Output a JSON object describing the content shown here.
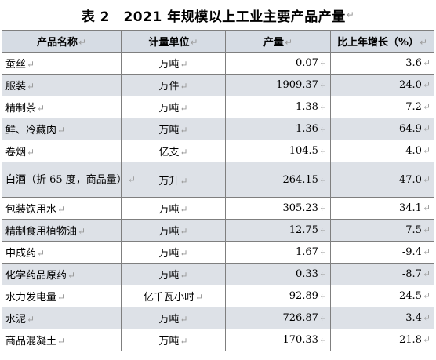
{
  "title": "表 2　2021 年规模以上工业主要产品产量",
  "columns": [
    "产品名称",
    "计量单位",
    "产量",
    "比上年增长（%）"
  ],
  "rows": [
    {
      "name": "蚕丝",
      "unit": "万吨",
      "output": "0.07",
      "growth": "3.6"
    },
    {
      "name": "服装",
      "unit": "万件",
      "output": "1909.37",
      "growth": "24.0"
    },
    {
      "name": "精制茶",
      "unit": "万吨",
      "output": "1.38",
      "growth": "7.2"
    },
    {
      "name": "鲜、冷藏肉",
      "unit": "万吨",
      "output": "1.36",
      "growth": "-64.9"
    },
    {
      "name": "卷烟",
      "unit": "亿支",
      "output": "104.5",
      "growth": "4.0"
    },
    {
      "name": "白酒（折 65 度，商品量）",
      "unit": "万升",
      "output": "264.15",
      "growth": "-47.0"
    },
    {
      "name": "包装饮用水",
      "unit": "万吨",
      "output": "305.23",
      "growth": "34.1"
    },
    {
      "name": "精制食用植物油",
      "unit": "万吨",
      "output": "12.75",
      "growth": "7.5"
    },
    {
      "name": "中成药",
      "unit": "万吨",
      "output": "1.67",
      "growth": "-9.4"
    },
    {
      "name": "化学药品原药",
      "unit": "万吨",
      "output": "0.33",
      "growth": "-8.7"
    },
    {
      "name": "水力发电量",
      "unit": "亿千瓦小时",
      "output": "92.89",
      "growth": "24.5"
    },
    {
      "name": "水泥",
      "unit": "万吨",
      "output": "726.87",
      "growth": "3.4"
    },
    {
      "name": "商品混凝土",
      "unit": "万吨",
      "output": "170.33",
      "growth": "21.8"
    }
  ]
}
